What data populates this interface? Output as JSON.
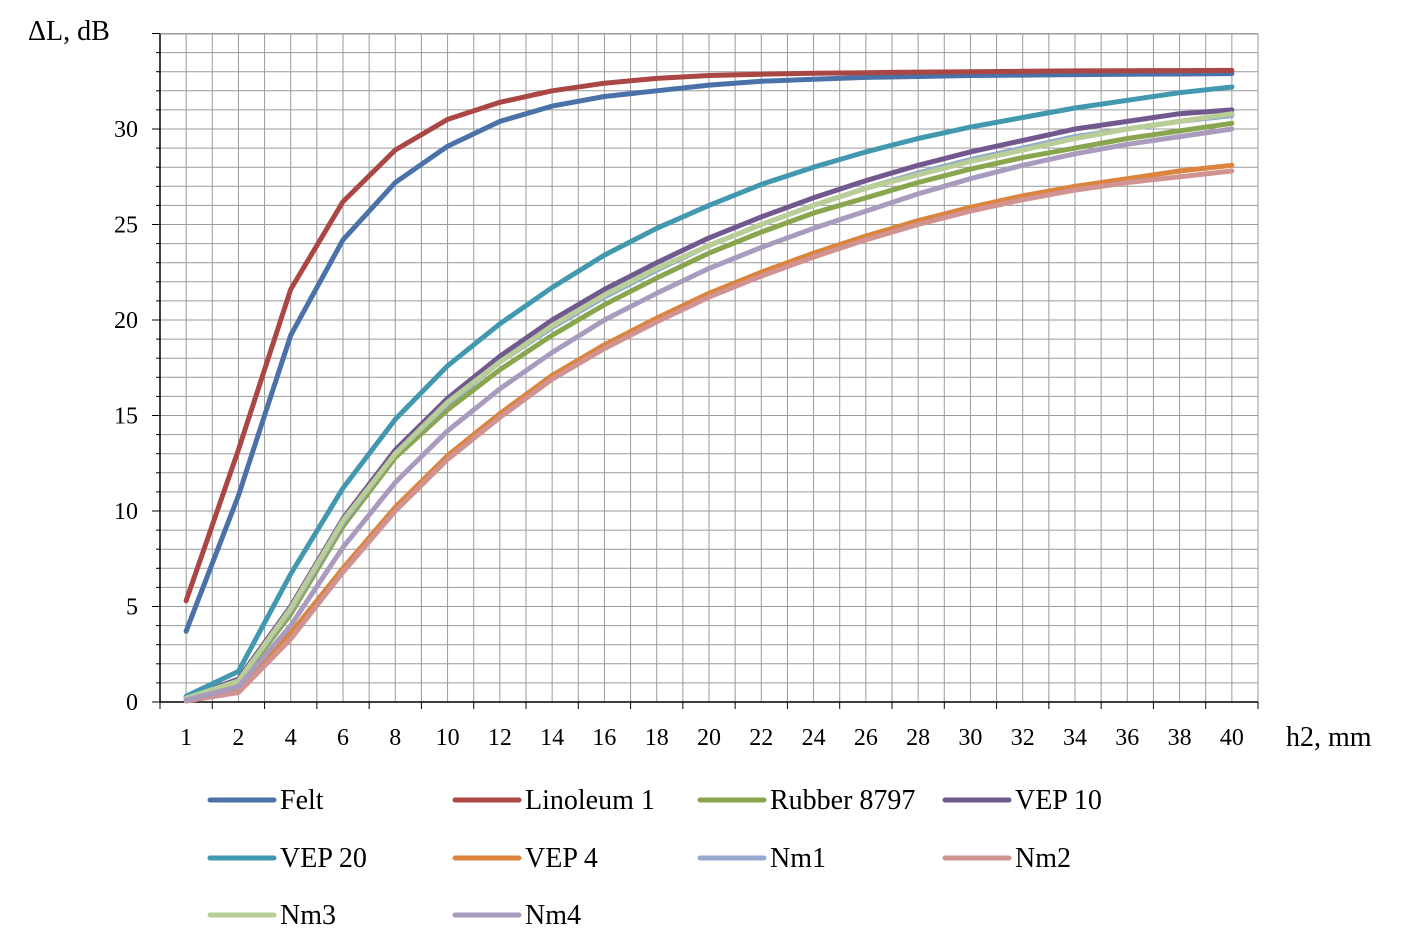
{
  "chart_data": {
    "type": "line",
    "ylabel": "ΔL, dB",
    "xlabel": "h2, mm",
    "categories": [
      "1",
      "2",
      "4",
      "6",
      "8",
      "10",
      "12",
      "14",
      "16",
      "18",
      "20",
      "22",
      "24",
      "26",
      "28",
      "30",
      "32",
      "34",
      "36",
      "38",
      "40"
    ],
    "ylim": [
      0,
      35
    ],
    "yticks": [
      0,
      5,
      10,
      15,
      20,
      25,
      30
    ],
    "grid": true,
    "legend_position": "bottom",
    "series": [
      {
        "name": "Felt",
        "color": "#4A72A8",
        "values": [
          3.7,
          10.8,
          19.2,
          24.2,
          27.2,
          29.1,
          30.4,
          31.2,
          31.7,
          32.0,
          32.3,
          32.5,
          32.6,
          32.7,
          32.75,
          32.8,
          32.82,
          32.85,
          32.87,
          32.88,
          32.9
        ]
      },
      {
        "name": "Linoleum 1",
        "color": "#AA4643",
        "values": [
          5.3,
          13.2,
          21.6,
          26.2,
          28.9,
          30.5,
          31.4,
          32.0,
          32.4,
          32.65,
          32.8,
          32.87,
          32.92,
          32.95,
          32.98,
          33.0,
          33.02,
          33.04,
          33.05,
          33.06,
          33.07
        ]
      },
      {
        "name": "Rubber 8797",
        "color": "#89A54E",
        "values": [
          0.2,
          1.0,
          4.6,
          9.2,
          12.8,
          15.3,
          17.4,
          19.2,
          20.8,
          22.2,
          23.5,
          24.6,
          25.6,
          26.4,
          27.2,
          27.9,
          28.5,
          29.0,
          29.5,
          29.9,
          30.3
        ]
      },
      {
        "name": "VEP 10",
        "color": "#71588F",
        "values": [
          0.2,
          1.2,
          5.0,
          9.6,
          13.2,
          15.9,
          18.1,
          20.0,
          21.6,
          23.0,
          24.3,
          25.4,
          26.4,
          27.3,
          28.1,
          28.8,
          29.4,
          30.0,
          30.4,
          30.8,
          31.0
        ]
      },
      {
        "name": "VEP 20",
        "color": "#4198AF",
        "values": [
          0.3,
          1.6,
          6.7,
          11.2,
          14.8,
          17.6,
          19.8,
          21.7,
          23.4,
          24.8,
          26.0,
          27.1,
          28.0,
          28.8,
          29.5,
          30.1,
          30.6,
          31.1,
          31.5,
          31.9,
          32.2
        ]
      },
      {
        "name": "VEP 4",
        "color": "#DB843D",
        "values": [
          0.1,
          0.6,
          3.6,
          7.0,
          10.2,
          12.9,
          15.1,
          17.1,
          18.7,
          20.1,
          21.4,
          22.5,
          23.5,
          24.4,
          25.2,
          25.9,
          26.5,
          27.0,
          27.4,
          27.8,
          28.1
        ]
      },
      {
        "name": "Nm1",
        "color": "#93A9CF",
        "values": [
          0.2,
          1.1,
          4.8,
          9.4,
          13.0,
          15.6,
          17.8,
          19.6,
          21.2,
          22.6,
          23.9,
          25.0,
          26.0,
          26.9,
          27.7,
          28.4,
          29.0,
          29.6,
          30.0,
          30.4,
          30.7
        ]
      },
      {
        "name": "Nm2",
        "color": "#D19392",
        "values": [
          0.05,
          0.5,
          3.3,
          6.8,
          10.0,
          12.7,
          14.9,
          16.9,
          18.5,
          19.9,
          21.2,
          22.3,
          23.3,
          24.2,
          25.0,
          25.7,
          26.3,
          26.8,
          27.2,
          27.5,
          27.8
        ]
      },
      {
        "name": "Nm3",
        "color": "#B9CD96",
        "values": [
          0.2,
          1.1,
          4.9,
          9.5,
          13.0,
          15.7,
          17.8,
          19.7,
          21.3,
          22.7,
          23.9,
          25.0,
          26.0,
          26.9,
          27.6,
          28.3,
          28.9,
          29.5,
          30.0,
          30.4,
          30.8
        ]
      },
      {
        "name": "Nm4",
        "color": "#A99BBD",
        "values": [
          0.1,
          0.8,
          4.0,
          8.1,
          11.5,
          14.2,
          16.4,
          18.3,
          20.0,
          21.4,
          22.7,
          23.8,
          24.8,
          25.7,
          26.6,
          27.4,
          28.1,
          28.7,
          29.2,
          29.6,
          30.0
        ]
      }
    ]
  }
}
